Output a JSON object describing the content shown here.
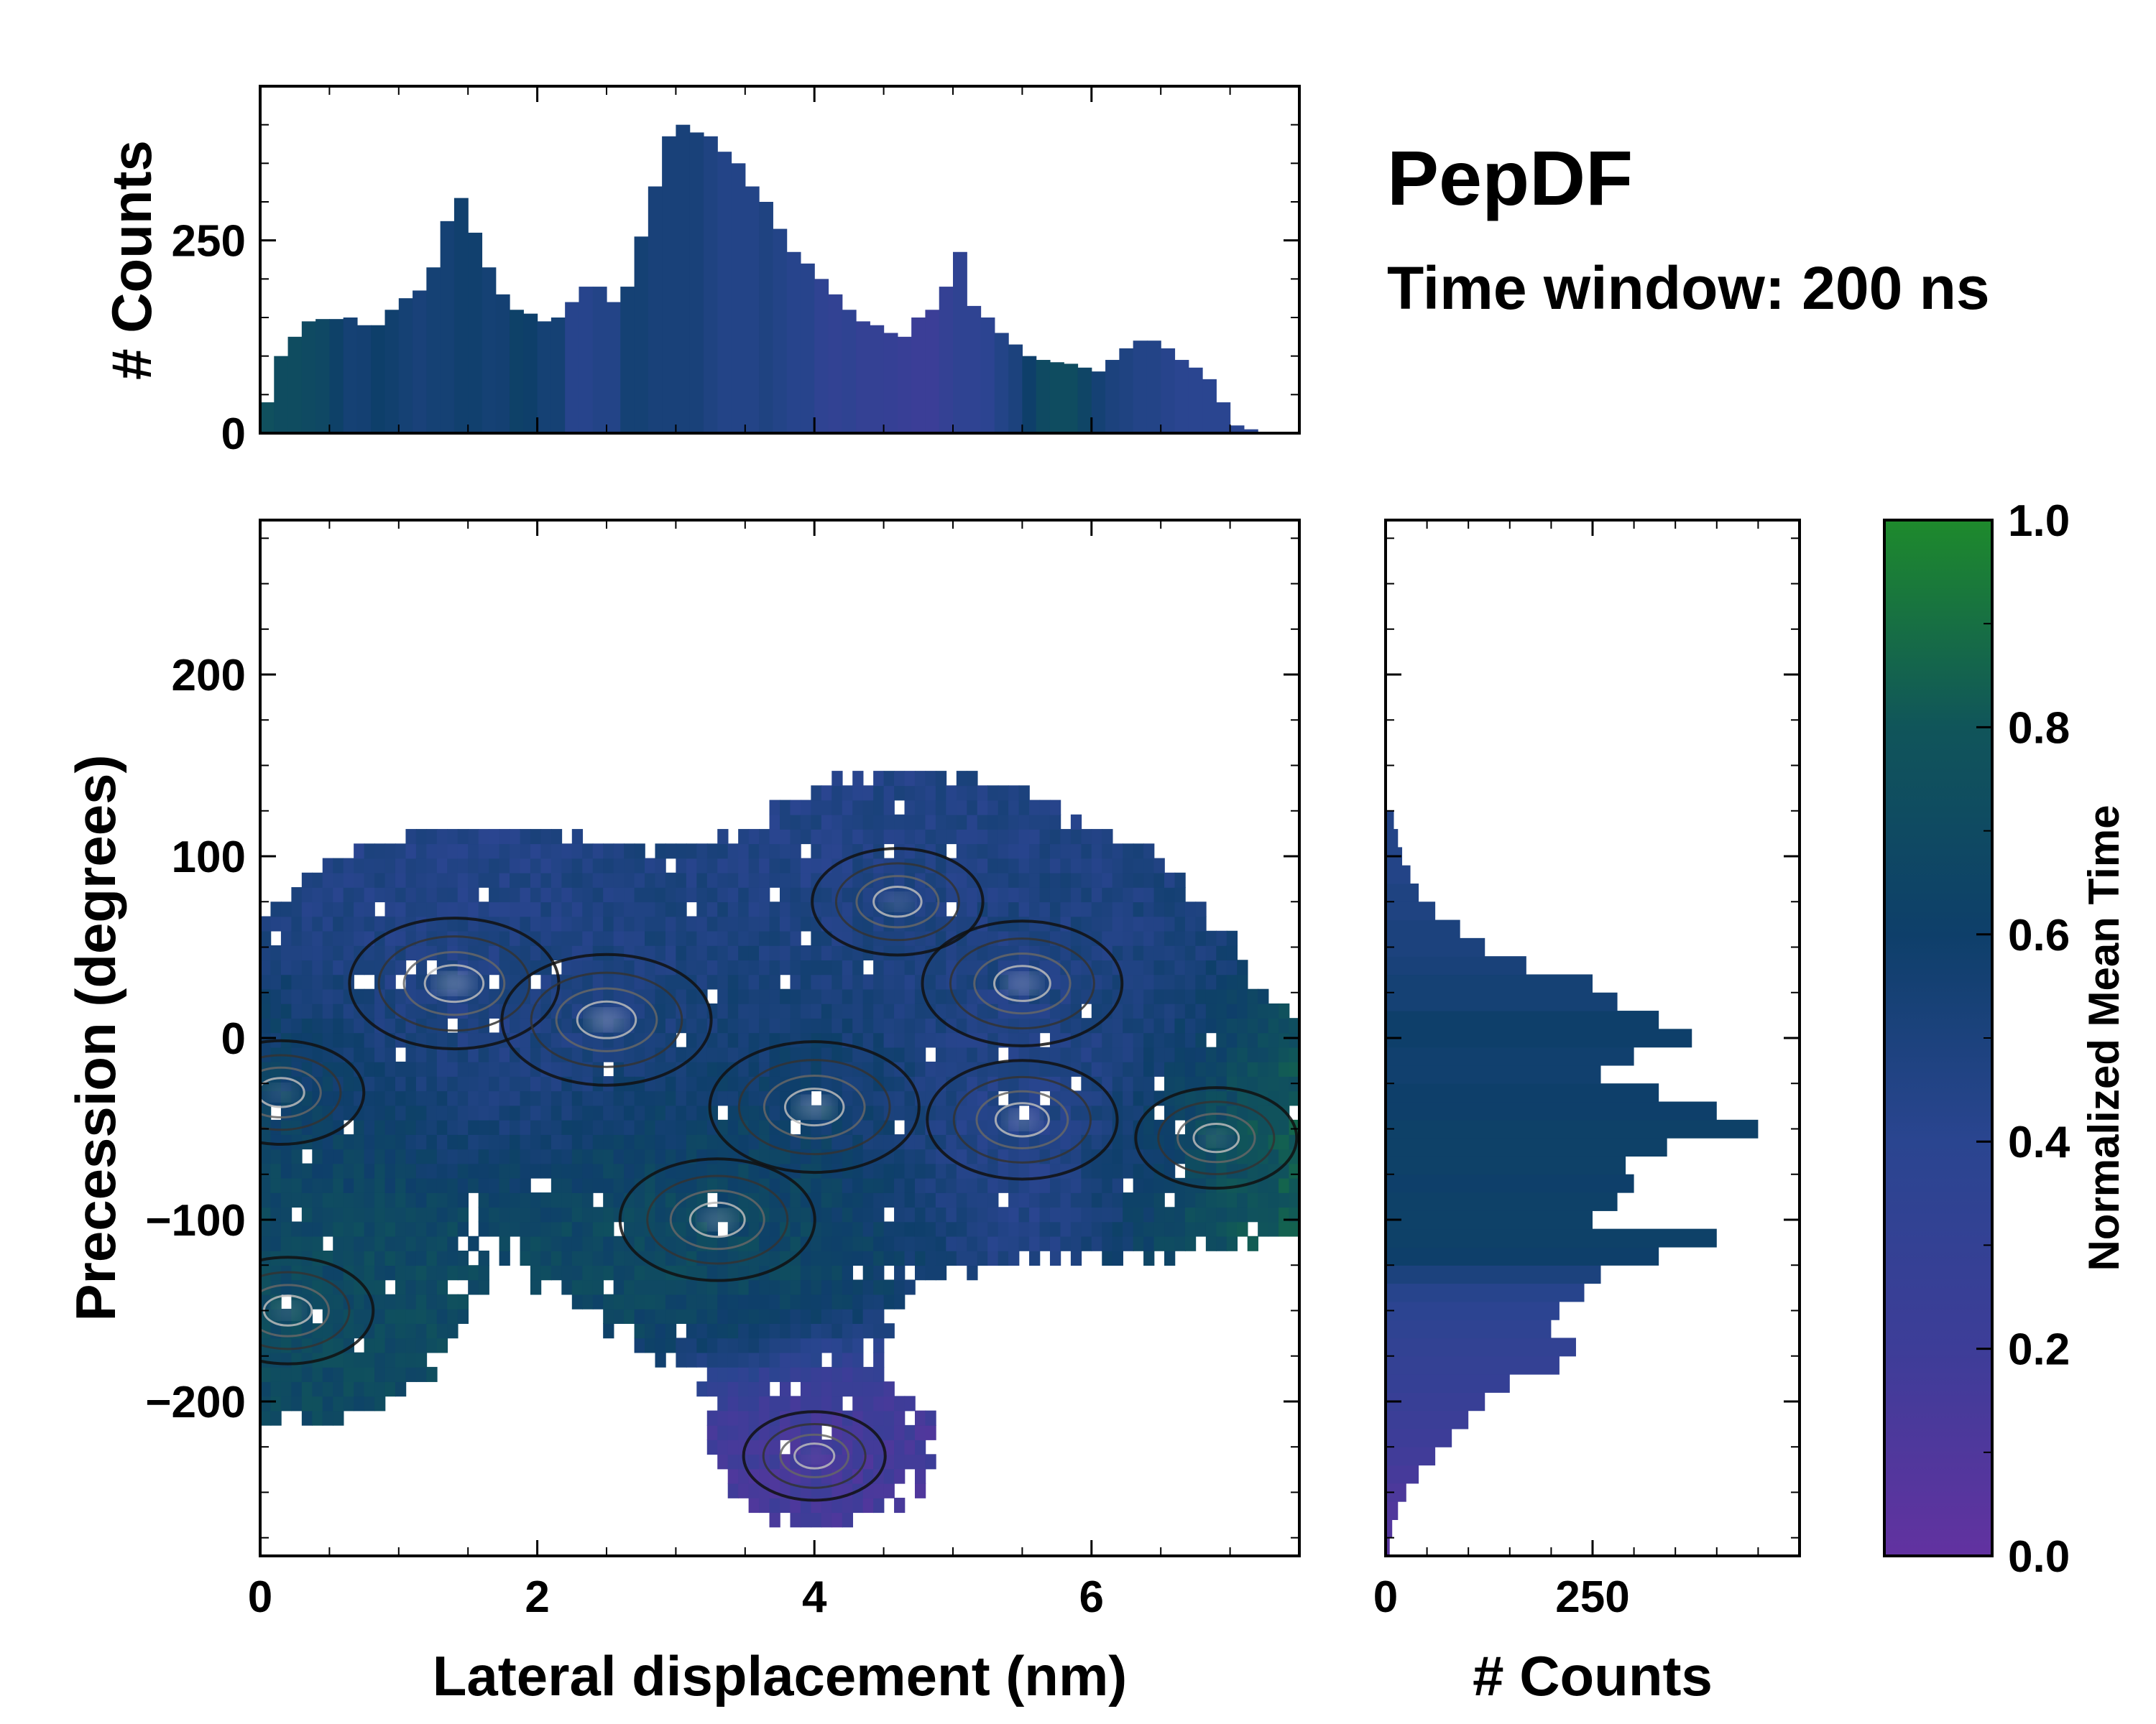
{
  "title": "PepDF",
  "subtitle": "Time window: 200 ns",
  "chart_data": [
    {
      "name": "top-histogram",
      "type": "bar",
      "xlim": [
        0,
        7.5
      ],
      "ylim": [
        0,
        450
      ],
      "ylabel": "# Counts",
      "yticks": [
        0,
        250
      ],
      "x": [
        0.05,
        0.15,
        0.25,
        0.35,
        0.45,
        0.55,
        0.65,
        0.75,
        0.85,
        0.95,
        1.05,
        1.15,
        1.25,
        1.35,
        1.45,
        1.55,
        1.65,
        1.75,
        1.85,
        1.95,
        2.05,
        2.15,
        2.25,
        2.35,
        2.45,
        2.55,
        2.65,
        2.75,
        2.85,
        2.95,
        3.05,
        3.15,
        3.25,
        3.35,
        3.45,
        3.55,
        3.65,
        3.75,
        3.85,
        3.95,
        4.05,
        4.15,
        4.25,
        4.35,
        4.45,
        4.55,
        4.65,
        4.75,
        4.85,
        4.95,
        5.05,
        5.15,
        5.25,
        5.35,
        5.45,
        5.55,
        5.65,
        5.75,
        5.85,
        5.95,
        6.05,
        6.15,
        6.25,
        6.35,
        6.45,
        6.55,
        6.65,
        6.75,
        6.85,
        6.95,
        7.05,
        7.15,
        7.25,
        7.35,
        7.45
      ],
      "values": [
        40,
        100,
        125,
        145,
        148,
        148,
        150,
        140,
        140,
        160,
        175,
        185,
        215,
        275,
        305,
        260,
        215,
        180,
        160,
        155,
        145,
        150,
        170,
        190,
        190,
        170,
        190,
        255,
        320,
        385,
        400,
        390,
        385,
        365,
        350,
        320,
        300,
        265,
        235,
        220,
        200,
        180,
        160,
        145,
        140,
        130,
        125,
        150,
        160,
        190,
        235,
        165,
        150,
        130,
        115,
        100,
        95,
        92,
        90,
        85,
        80,
        95,
        110,
        120,
        120,
        110,
        95,
        85,
        70,
        40,
        10,
        5,
        0,
        0,
        0
      ],
      "bar_time": [
        0.75,
        0.72,
        0.72,
        0.7,
        0.68,
        0.62,
        0.55,
        0.56,
        0.6,
        0.58,
        0.55,
        0.52,
        0.55,
        0.55,
        0.58,
        0.58,
        0.55,
        0.56,
        0.62,
        0.6,
        0.55,
        0.55,
        0.42,
        0.42,
        0.45,
        0.45,
        0.55,
        0.55,
        0.52,
        0.52,
        0.52,
        0.52,
        0.48,
        0.45,
        0.45,
        0.45,
        0.48,
        0.45,
        0.42,
        0.42,
        0.35,
        0.32,
        0.35,
        0.3,
        0.3,
        0.28,
        0.25,
        0.22,
        0.22,
        0.3,
        0.35,
        0.35,
        0.38,
        0.45,
        0.5,
        0.6,
        0.7,
        0.72,
        0.72,
        0.65,
        0.55,
        0.5,
        0.48,
        0.45,
        0.45,
        0.42,
        0.4,
        0.4,
        0.4,
        0.4,
        0.4,
        0.4,
        0.4,
        0.4,
        0.4
      ]
    },
    {
      "name": "side-histogram",
      "type": "bar",
      "orientation": "horizontal",
      "ylim": [
        -285,
        285
      ],
      "xlim": [
        0,
        500
      ],
      "xlabel": "# Counts",
      "xticks": [
        0,
        250
      ],
      "y": [
        -280,
        -270,
        -260,
        -250,
        -240,
        -230,
        -220,
        -210,
        -200,
        -190,
        -180,
        -170,
        -160,
        -150,
        -140,
        -130,
        -120,
        -110,
        -100,
        -90,
        -80,
        -70,
        -60,
        -50,
        -40,
        -30,
        -20,
        -10,
        0,
        10,
        20,
        30,
        40,
        50,
        60,
        70,
        80,
        90,
        100,
        110,
        120
      ],
      "values": [
        5,
        8,
        15,
        25,
        40,
        60,
        80,
        100,
        120,
        150,
        210,
        230,
        200,
        210,
        240,
        260,
        330,
        400,
        250,
        280,
        300,
        290,
        340,
        450,
        400,
        330,
        260,
        300,
        370,
        330,
        280,
        250,
        170,
        120,
        90,
        60,
        40,
        30,
        20,
        15,
        10
      ],
      "bar_time": [
        0.05,
        0.08,
        0.1,
        0.12,
        0.15,
        0.18,
        0.2,
        0.22,
        0.25,
        0.28,
        0.3,
        0.32,
        0.35,
        0.38,
        0.42,
        0.5,
        0.6,
        0.62,
        0.62,
        0.62,
        0.6,
        0.62,
        0.62,
        0.62,
        0.6,
        0.6,
        0.58,
        0.58,
        0.6,
        0.6,
        0.55,
        0.55,
        0.52,
        0.5,
        0.5,
        0.48,
        0.48,
        0.45,
        0.45,
        0.45,
        0.45
      ]
    },
    {
      "name": "main-heatmap",
      "type": "heatmap",
      "xlim": [
        0,
        7.5
      ],
      "ylim": [
        -285,
        285
      ],
      "xlabel": "Lateral displacement (nm)",
      "ylabel": "Precession (degrees)",
      "xticks": [
        0,
        2,
        4,
        6
      ],
      "yticks": [
        -200,
        -100,
        0,
        100,
        200
      ],
      "regions": [
        {
          "label": "cluster-1",
          "x": 1.4,
          "y": 30,
          "time": 0.45,
          "density": 1.0
        },
        {
          "label": "cluster-2",
          "x": 2.5,
          "y": 10,
          "time": 0.5,
          "density": 1.0
        },
        {
          "label": "cluster-3",
          "x": 4.0,
          "y": -38,
          "time": 0.6,
          "density": 1.0
        },
        {
          "label": "cluster-4",
          "x": 3.3,
          "y": -100,
          "time": 0.7,
          "density": 0.85
        },
        {
          "label": "cluster-5",
          "x": 5.5,
          "y": 30,
          "time": 0.5,
          "density": 0.9
        },
        {
          "label": "cluster-6",
          "x": 5.5,
          "y": -45,
          "time": 0.35,
          "density": 0.8
        },
        {
          "label": "cluster-7",
          "x": 0.2,
          "y": -150,
          "time": 0.7,
          "density": 0.6
        },
        {
          "label": "cluster-8",
          "x": 0.15,
          "y": -30,
          "time": 0.65,
          "density": 0.55
        },
        {
          "label": "cluster-9",
          "x": 6.9,
          "y": -55,
          "time": 0.85,
          "density": 0.5
        },
        {
          "label": "cluster-10",
          "x": 4.6,
          "y": 75,
          "time": 0.45,
          "density": 0.6
        },
        {
          "label": "cluster-11",
          "x": 4.0,
          "y": -230,
          "time": 0.15,
          "density": 0.3
        }
      ]
    },
    {
      "name": "colorbar",
      "type": "colorbar",
      "label": "Normalized Mean Time",
      "range": [
        0.0,
        1.0
      ],
      "ticks": [
        "0.0",
        "0.2",
        "0.4",
        "0.6",
        "0.8",
        "1.0"
      ],
      "colors": [
        "#6232A0",
        "#3D3D98",
        "#2A4590",
        "#0E3F6A",
        "#10555A",
        "#1E8A2C"
      ]
    }
  ]
}
